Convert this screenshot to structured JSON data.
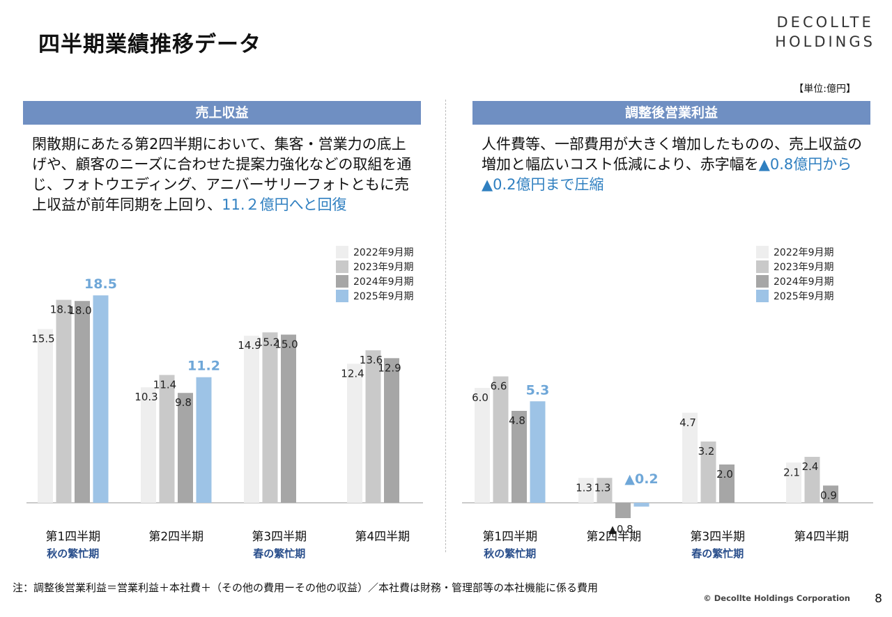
{
  "title": "四半期業績推移データ",
  "logo": [
    "DECOLLTE",
    "HOLDINGS"
  ],
  "unit": "【単位:億円】",
  "left": {
    "header": "売上収益",
    "text_plain": "閑散期にあたる第2四半期において、集客・営業力の底上げや、顧客のニーズに合わせた提案力強化などの取組を通じ、フォトウエディング、アニバーサリーフォトともに売上収益が前年同期を上回り、",
    "text_highlight": "11.２億円へと回復"
  },
  "right": {
    "header": "調整後営業利益",
    "text_plain": "人件費等、一部費用が大きく増加したものの、売上収益の増加と幅広いコスト低減により、赤字幅を",
    "text_highlight": "▲0.8億円から▲0.2億円まで圧縮"
  },
  "footnote": "注：調整後営業利益＝営業利益＋本社費＋（その他の費用ーその他の収益）／本社費は財務・管理部等の本社機能に係る費用",
  "copyright": "© Decollte Holdings Corporation",
  "page_number": "8",
  "colors": {
    "s2022": "#eeeeee",
    "s2023": "#c9c9c9",
    "s2024": "#a6a6a6",
    "s2025": "#9dc3e6",
    "band": "#6f8fc2",
    "highlight": "#2f7fc0"
  },
  "chart_data": [
    {
      "type": "bar",
      "title": "売上収益",
      "categories": [
        "第1四半期",
        "第2四半期",
        "第3四半期",
        "第4四半期"
      ],
      "category_notes": [
        "秋の繁忙期",
        "",
        "春の繁忙期",
        ""
      ],
      "series": [
        {
          "name": "2022年9月期",
          "values": [
            15.5,
            10.3,
            14.9,
            12.4
          ],
          "labels": [
            "15.5",
            "10.3",
            "14.9",
            "12.4"
          ]
        },
        {
          "name": "2023年9月期",
          "values": [
            18.1,
            11.4,
            15.2,
            13.6
          ],
          "labels": [
            "18.1",
            "11.4",
            "15.2",
            "13.6"
          ]
        },
        {
          "name": "2024年9月期",
          "values": [
            18.0,
            9.8,
            15.0,
            12.9
          ],
          "labels": [
            "18.0",
            "9.8",
            "15.0",
            "12.9"
          ]
        },
        {
          "name": "2025年9月期",
          "values": [
            18.5,
            11.2,
            null,
            null
          ],
          "labels": [
            "18.5",
            "11.2",
            "",
            ""
          ]
        }
      ],
      "legend": "top-right",
      "grid": false
    },
    {
      "type": "bar",
      "title": "調整後営業利益",
      "categories": [
        "第1四半期",
        "第2四半期",
        "第3四半期",
        "第4四半期"
      ],
      "category_notes": [
        "秋の繁忙期",
        "",
        "春の繁忙期",
        ""
      ],
      "series": [
        {
          "name": "2022年9月期",
          "values": [
            6.0,
            1.3,
            4.7,
            2.1
          ],
          "labels": [
            "6.0",
            "1.3",
            "4.7",
            "2.1"
          ]
        },
        {
          "name": "2023年9月期",
          "values": [
            6.6,
            1.3,
            3.2,
            2.4
          ],
          "labels": [
            "6.6",
            "1.3",
            "3.2",
            "2.4"
          ]
        },
        {
          "name": "2024年9月期",
          "values": [
            4.8,
            -0.8,
            2.0,
            0.9
          ],
          "labels": [
            "4.8",
            "▲0.8",
            "2.0",
            "0.9"
          ]
        },
        {
          "name": "2025年9月期",
          "values": [
            5.3,
            -0.2,
            null,
            null
          ],
          "labels": [
            "5.3",
            "▲0.2",
            "",
            ""
          ]
        }
      ],
      "legend": "top-right",
      "grid": false
    }
  ]
}
